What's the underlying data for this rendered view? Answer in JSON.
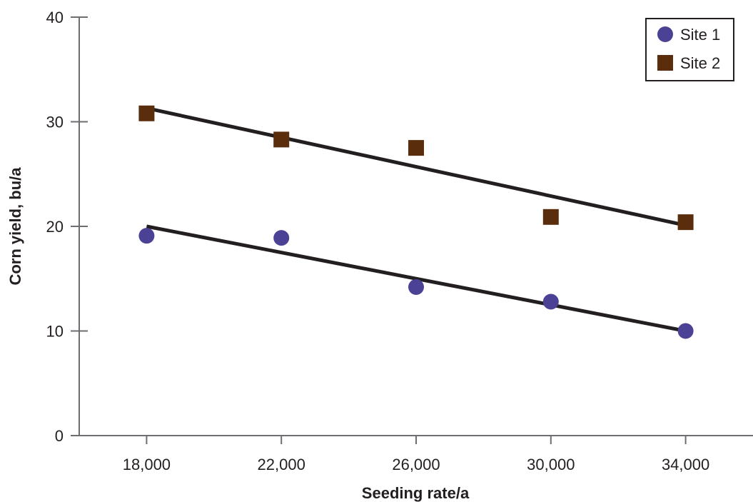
{
  "chart_data": {
    "type": "scatter",
    "xlabel": "Seeding rate/a",
    "ylabel": "Corn yield, bu/a",
    "x": [
      18000,
      22000,
      26000,
      30000,
      34000
    ],
    "xtick_labels": [
      "18,000",
      "22,000",
      "26,000",
      "30,000",
      "34,000"
    ],
    "ytick_values": [
      0,
      10,
      20,
      30,
      40
    ],
    "ytick_labels": [
      "0",
      "10",
      "20",
      "30",
      "40"
    ],
    "xlim": [
      16000,
      36000
    ],
    "ylim": [
      0,
      40
    ],
    "grid": false,
    "legend_position": "top-right",
    "series": [
      {
        "name": "Site 1",
        "marker": "circle",
        "color": "#4b4295",
        "values": [
          19.1,
          18.9,
          14.2,
          12.8,
          10.0
        ],
        "trendline": {
          "x": [
            18000,
            34000
          ],
          "y": [
            20.0,
            10.0
          ]
        }
      },
      {
        "name": "Site 2",
        "marker": "square",
        "color": "#5a2d0c",
        "values": [
          30.8,
          28.3,
          27.5,
          20.9,
          20.4
        ],
        "trendline": {
          "x": [
            18000,
            34000
          ],
          "y": [
            31.3,
            20.1
          ]
        }
      }
    ],
    "trendline_color": "#231f20"
  }
}
